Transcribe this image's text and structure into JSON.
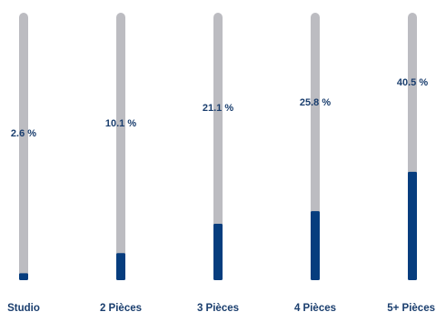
{
  "chart_data": {
    "type": "bar",
    "orientation": "vertical",
    "categories": [
      "Studio",
      "2 Pièces",
      "3 Pièces",
      "4 Pièces",
      "5+ Pièces"
    ],
    "values": [
      2.6,
      10.1,
      21.1,
      25.8,
      40.5
    ],
    "value_labels": [
      "2.6 %",
      "10.1 %",
      "21.1 %",
      "25.8 %",
      "40.5 %"
    ],
    "ylim": [
      0,
      100
    ],
    "grid": false,
    "legend": "none",
    "colors": {
      "track": "#bcbcc1",
      "fill": "#063d7e",
      "text": "#1a3e6e"
    }
  }
}
